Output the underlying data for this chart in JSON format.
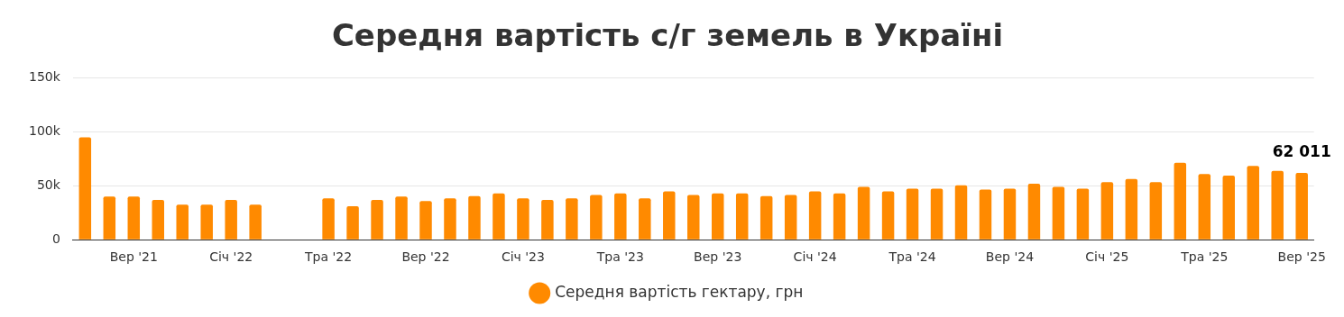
{
  "chart_data": {
    "type": "bar",
    "title": "Середня вартість с/г земель в Україні",
    "categories": [
      null,
      null,
      "Вер '21",
      null,
      null,
      null,
      "Січ '22",
      null,
      null,
      null,
      "Тра '22",
      null,
      null,
      null,
      "Вер '22",
      null,
      null,
      null,
      "Січ '23",
      null,
      null,
      null,
      "Тра '23",
      null,
      null,
      null,
      "Вер '23",
      null,
      null,
      null,
      "Січ '24",
      null,
      null,
      null,
      "Тра '24",
      null,
      null,
      null,
      "Вер '24",
      null,
      null,
      null,
      "Січ '25",
      null,
      null,
      null,
      "Тра '25",
      null,
      null,
      null,
      "Вер '25"
    ],
    "series": [
      {
        "name": "Середня вартість гектару, грн",
        "color": "#ff8a00",
        "values": [
          95000,
          40000,
          40000,
          37000,
          32500,
          32500,
          37000,
          32500,
          null,
          null,
          38500,
          31000,
          37000,
          40000,
          36000,
          38500,
          40500,
          43000,
          38500,
          37000,
          38500,
          41500,
          43000,
          38500,
          45000,
          41500,
          43000,
          43000,
          40500,
          41500,
          45000,
          43000,
          49000,
          45000,
          47500,
          47500,
          50500,
          46500,
          47500,
          52000,
          49000,
          47500,
          53500,
          56500,
          53500,
          71500,
          61000,
          59500,
          68500,
          64000,
          62011
        ],
        "value_labels": [
          null,
          null,
          null,
          null,
          null,
          null,
          null,
          null,
          null,
          null,
          null,
          null,
          null,
          null,
          null,
          null,
          null,
          null,
          null,
          null,
          null,
          null,
          null,
          null,
          null,
          null,
          null,
          null,
          null,
          null,
          null,
          null,
          null,
          null,
          null,
          null,
          null,
          null,
          null,
          null,
          null,
          null,
          null,
          null,
          null,
          null,
          null,
          null,
          null,
          null,
          "62 011"
        ]
      }
    ],
    "ylim": [
      0,
      150000
    ],
    "yticks": [
      {
        "value": 0,
        "label": "0"
      },
      {
        "value": 50000,
        "label": "50k"
      },
      {
        "value": 100000,
        "label": "100k"
      },
      {
        "value": 150000,
        "label": "150k"
      }
    ],
    "grid": "y",
    "legend": "bottom"
  }
}
